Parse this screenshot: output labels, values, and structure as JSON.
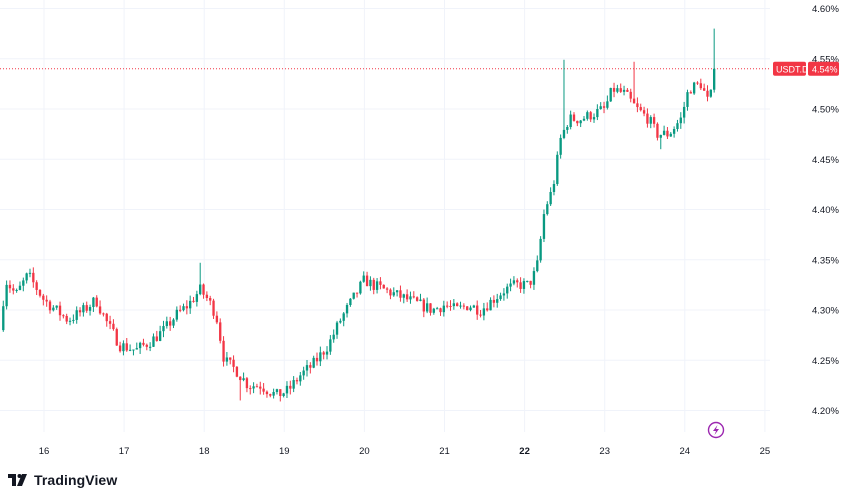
{
  "brand": {
    "name": "TradingView"
  },
  "symbol_tag": {
    "label": "USDT.D",
    "value": "4.54%"
  },
  "colors": {
    "up": "#089981",
    "down": "#f23645",
    "grid": "#f0f3fa",
    "text": "#131722",
    "price_line": "#f23645",
    "flash_icon": "#9c27b0"
  },
  "chart_data": {
    "type": "candlestick",
    "title": "",
    "symbol": "USDT.D",
    "y_axis": {
      "side": "right",
      "ticks": [
        "4.20%",
        "4.25%",
        "4.30%",
        "4.35%",
        "4.40%",
        "4.45%",
        "4.50%",
        "4.55%",
        "4.60%"
      ],
      "ylim": [
        4.185,
        4.605
      ]
    },
    "x_axis": {
      "ticks": [
        "16",
        "17",
        "18",
        "19",
        "20",
        "21",
        "22",
        "23",
        "24",
        "25"
      ],
      "bold_tick": "22",
      "xlim": [
        15.45,
        25.45
      ]
    },
    "grid": true,
    "last_value": 4.54,
    "anchors": [
      [
        15.45,
        4.28
      ],
      [
        15.52,
        4.33
      ],
      [
        15.65,
        4.315
      ],
      [
        15.8,
        4.335
      ],
      [
        16.0,
        4.31
      ],
      [
        16.15,
        4.3
      ],
      [
        16.3,
        4.29
      ],
      [
        16.5,
        4.3
      ],
      [
        16.65,
        4.31
      ],
      [
        16.8,
        4.285
      ],
      [
        16.95,
        4.265
      ],
      [
        17.15,
        4.26
      ],
      [
        17.35,
        4.27
      ],
      [
        17.5,
        4.28
      ],
      [
        17.65,
        4.295
      ],
      [
        17.8,
        4.305
      ],
      [
        17.95,
        4.32
      ],
      [
        18.05,
        4.31
      ],
      [
        18.15,
        4.295
      ],
      [
        18.25,
        4.25
      ],
      [
        18.4,
        4.24
      ],
      [
        18.55,
        4.225
      ],
      [
        18.7,
        4.225
      ],
      [
        18.9,
        4.215
      ],
      [
        19.05,
        4.22
      ],
      [
        19.2,
        4.235
      ],
      [
        19.35,
        4.245
      ],
      [
        19.55,
        4.265
      ],
      [
        19.7,
        4.29
      ],
      [
        19.85,
        4.31
      ],
      [
        20.0,
        4.33
      ],
      [
        20.1,
        4.325
      ],
      [
        20.25,
        4.32
      ],
      [
        20.4,
        4.315
      ],
      [
        20.55,
        4.31
      ],
      [
        20.7,
        4.305
      ],
      [
        20.85,
        4.3
      ],
      [
        21.0,
        4.305
      ],
      [
        21.15,
        4.3
      ],
      [
        21.3,
        4.305
      ],
      [
        21.45,
        4.3
      ],
      [
        21.6,
        4.31
      ],
      [
        21.75,
        4.32
      ],
      [
        21.9,
        4.325
      ],
      [
        22.05,
        4.325
      ],
      [
        22.15,
        4.34
      ],
      [
        22.25,
        4.4
      ],
      [
        22.35,
        4.42
      ],
      [
        22.45,
        4.47
      ],
      [
        22.55,
        4.49
      ],
      [
        22.7,
        4.49
      ],
      [
        22.85,
        4.495
      ],
      [
        23.0,
        4.5
      ],
      [
        23.1,
        4.52
      ],
      [
        23.25,
        4.515
      ],
      [
        23.4,
        4.5
      ],
      [
        23.55,
        4.49
      ],
      [
        23.65,
        4.475
      ],
      [
        23.8,
        4.475
      ],
      [
        23.95,
        4.49
      ],
      [
        24.05,
        4.52
      ],
      [
        24.2,
        4.525
      ],
      [
        24.3,
        4.505
      ],
      [
        24.4,
        4.54
      ]
    ],
    "spikes": [
      {
        "x": 22.5,
        "high": 4.549
      },
      {
        "x": 23.35,
        "high": 4.547
      },
      {
        "x": 24.4,
        "high": 4.58
      },
      {
        "x": 17.95,
        "high": 4.347
      },
      {
        "x": 18.45,
        "low": 4.21
      },
      {
        "x": 18.95,
        "low": 4.209
      },
      {
        "x": 23.7,
        "low": 4.46
      }
    ]
  }
}
